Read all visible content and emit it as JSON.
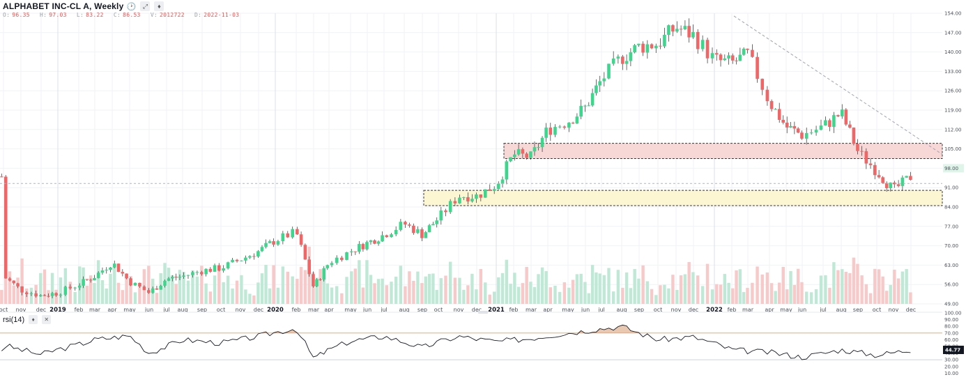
{
  "header": {
    "symbol": "ALPHABET INC-CL A, Weekly",
    "icons": [
      "clock-icon",
      "expand-icon",
      "pin-icon"
    ],
    "ohlc": [
      {
        "key": "O:",
        "value": "96.35"
      },
      {
        "key": "H:",
        "value": "97.03"
      },
      {
        "key": "L:",
        "value": "83.22"
      },
      {
        "key": "C:",
        "value": "86.53"
      },
      {
        "key": "V:",
        "value": "2012722"
      },
      {
        "key": "D:",
        "value": "2022-11-03"
      }
    ]
  },
  "price_axis": {
    "ticks": [
      "154.00",
      "147.00",
      "140.00",
      "133.00",
      "126.00",
      "119.00",
      "112.00",
      "105.00",
      "98.00",
      "91.00",
      "84.00",
      "77.00",
      "70.00",
      "63.00",
      "56.00",
      "49.00"
    ],
    "current_label": "98.00"
  },
  "rsi": {
    "label": "rsi(14)",
    "ticks": [
      "100.00",
      "90.00",
      "80.00",
      "70.00",
      "60.00",
      "50.00",
      "40.00",
      "30.00",
      "20.00",
      "10.00"
    ],
    "current_label": "44.77"
  },
  "time_axis": {
    "labels": [
      {
        "t": "oct",
        "x": 5
      },
      {
        "t": "nov",
        "x": 30
      },
      {
        "t": "dec",
        "x": 59
      },
      {
        "t": "2019",
        "x": 83,
        "year": true
      },
      {
        "t": "feb",
        "x": 113
      },
      {
        "t": "mar",
        "x": 136
      },
      {
        "t": "apr",
        "x": 161
      },
      {
        "t": "may",
        "x": 186
      },
      {
        "t": "jun",
        "x": 214
      },
      {
        "t": "jul",
        "x": 239
      },
      {
        "t": "aug",
        "x": 262
      },
      {
        "t": "sep",
        "x": 290
      },
      {
        "t": "oct",
        "x": 317
      },
      {
        "t": "nov",
        "x": 345
      },
      {
        "t": "dec",
        "x": 371
      },
      {
        "t": "2020",
        "x": 395,
        "year": true
      },
      {
        "t": "feb",
        "x": 425
      },
      {
        "t": "mar",
        "x": 450
      },
      {
        "t": "apr",
        "x": 472
      },
      {
        "t": "may",
        "x": 503
      },
      {
        "t": "jun",
        "x": 527
      },
      {
        "t": "jul",
        "x": 551
      },
      {
        "t": "aug",
        "x": 580
      },
      {
        "t": "sep",
        "x": 606
      },
      {
        "t": "oct",
        "x": 629
      },
      {
        "t": "nov",
        "x": 658
      },
      {
        "t": "dec",
        "x": 684
      },
      {
        "t": "2021",
        "x": 712,
        "year": true
      },
      {
        "t": "feb",
        "x": 737
      },
      {
        "t": "mar",
        "x": 762
      },
      {
        "t": "apr",
        "x": 786
      },
      {
        "t": "may",
        "x": 815
      },
      {
        "t": "jun",
        "x": 840
      },
      {
        "t": "jul",
        "x": 863
      },
      {
        "t": "aug",
        "x": 892
      },
      {
        "t": "sep",
        "x": 917
      },
      {
        "t": "oct",
        "x": 944
      },
      {
        "t": "nov",
        "x": 970
      },
      {
        "t": "dec",
        "x": 995
      },
      {
        "t": "2022",
        "x": 1025,
        "year": true
      },
      {
        "t": "feb",
        "x": 1050
      },
      {
        "t": "mar",
        "x": 1073
      },
      {
        "t": "apr",
        "x": 1104
      },
      {
        "t": "may",
        "x": 1128
      },
      {
        "t": "jun",
        "x": 1151
      },
      {
        "t": "jul",
        "x": 1181
      },
      {
        "t": "aug",
        "x": 1207
      },
      {
        "t": "sep",
        "x": 1231
      },
      {
        "t": "oct",
        "x": 1258
      },
      {
        "t": "nov",
        "x": 1282
      },
      {
        "t": "dec",
        "x": 1307
      }
    ]
  },
  "colors": {
    "up": "#26a69a",
    "down": "#ef5350",
    "up_candle": "#3dd68c",
    "down_candle": "#f06565",
    "up_vol": "#bfe9d6",
    "down_vol": "#f7c9c9",
    "resistance_zone": "#f8d7d7",
    "support_zone": "#fdf6d3",
    "rsi_line": "#131722",
    "rsi_overbought_fill": "#e8c8b0",
    "rsi_70_line": "#e0a070",
    "current_price_bg": "#e0f5e9"
  },
  "chart_data": {
    "type": "candlestick",
    "title": "ALPHABET INC-CL A, Weekly",
    "y_range": [
      49,
      154
    ],
    "rsi_range": [
      0,
      100
    ],
    "current_price": 98,
    "last_rsi": 44.77,
    "resistance_zone": [
      101.5,
      107
    ],
    "support_zone": [
      84.5,
      90
    ],
    "trendline": {
      "from": {
        "date": "2022-02",
        "price": 153
      },
      "to": {
        "date": "2022-12",
        "price": 103
      }
    },
    "price_path": [
      {
        "date": "2018-10",
        "close": 59
      },
      {
        "date": "2018-11",
        "close": 54
      },
      {
        "date": "2018-12",
        "close": 52
      },
      {
        "date": "2019-01",
        "close": 53
      },
      {
        "date": "2019-02",
        "close": 56
      },
      {
        "date": "2019-03",
        "close": 59
      },
      {
        "date": "2019-04",
        "close": 64
      },
      {
        "date": "2019-05",
        "close": 57
      },
      {
        "date": "2019-06",
        "close": 53
      },
      {
        "date": "2019-07",
        "close": 58
      },
      {
        "date": "2019-08",
        "close": 59
      },
      {
        "date": "2019-09",
        "close": 61
      },
      {
        "date": "2019-10",
        "close": 62
      },
      {
        "date": "2019-11",
        "close": 65
      },
      {
        "date": "2019-12",
        "close": 68
      },
      {
        "date": "2020-01",
        "close": 72
      },
      {
        "date": "2020-02",
        "close": 75
      },
      {
        "date": "2020-03",
        "close": 55
      },
      {
        "date": "2020-04",
        "close": 64
      },
      {
        "date": "2020-05",
        "close": 68
      },
      {
        "date": "2020-06",
        "close": 71
      },
      {
        "date": "2020-07",
        "close": 74
      },
      {
        "date": "2020-08",
        "close": 78
      },
      {
        "date": "2020-09",
        "close": 74
      },
      {
        "date": "2020-10",
        "close": 80
      },
      {
        "date": "2020-11",
        "close": 88
      },
      {
        "date": "2020-12",
        "close": 88
      },
      {
        "date": "2021-01",
        "close": 92
      },
      {
        "date": "2021-02",
        "close": 103
      },
      {
        "date": "2021-03",
        "close": 102
      },
      {
        "date": "2021-04",
        "close": 112
      },
      {
        "date": "2021-05",
        "close": 115
      },
      {
        "date": "2021-06",
        "close": 120
      },
      {
        "date": "2021-07",
        "close": 130
      },
      {
        "date": "2021-08",
        "close": 138
      },
      {
        "date": "2021-09",
        "close": 142
      },
      {
        "date": "2021-10",
        "close": 143
      },
      {
        "date": "2021-11",
        "close": 149
      },
      {
        "date": "2021-12",
        "close": 146
      },
      {
        "date": "2022-01",
        "close": 137
      },
      {
        "date": "2022-02",
        "close": 136
      },
      {
        "date": "2022-03",
        "close": 139
      },
      {
        "date": "2022-04",
        "close": 122
      },
      {
        "date": "2022-05",
        "close": 113
      },
      {
        "date": "2022-06",
        "close": 110
      },
      {
        "date": "2022-07",
        "close": 113
      },
      {
        "date": "2022-08",
        "close": 118
      },
      {
        "date": "2022-09",
        "close": 104
      },
      {
        "date": "2022-10",
        "close": 97
      },
      {
        "date": "2022-11",
        "close": 90
      },
      {
        "date": "2022-12",
        "close": 95
      }
    ],
    "rsi_path": [
      {
        "date": "2018-10",
        "rsi": 52
      },
      {
        "date": "2018-12",
        "rsi": 38
      },
      {
        "date": "2019-03",
        "rsi": 60
      },
      {
        "date": "2019-05",
        "rsi": 66
      },
      {
        "date": "2019-06",
        "rsi": 40
      },
      {
        "date": "2019-08",
        "rsi": 60
      },
      {
        "date": "2019-10",
        "rsi": 55
      },
      {
        "date": "2019-12",
        "rsi": 65
      },
      {
        "date": "2020-02",
        "rsi": 77
      },
      {
        "date": "2020-03",
        "rsi": 32
      },
      {
        "date": "2020-05",
        "rsi": 58
      },
      {
        "date": "2020-07",
        "rsi": 65
      },
      {
        "date": "2020-09",
        "rsi": 48
      },
      {
        "date": "2020-11",
        "rsi": 65
      },
      {
        "date": "2021-01",
        "rsi": 57
      },
      {
        "date": "2021-03",
        "rsi": 62
      },
      {
        "date": "2021-05",
        "rsi": 70
      },
      {
        "date": "2021-08",
        "rsi": 80
      },
      {
        "date": "2021-10",
        "rsi": 60
      },
      {
        "date": "2021-12",
        "rsi": 64
      },
      {
        "date": "2022-02",
        "rsi": 45
      },
      {
        "date": "2022-04",
        "rsi": 41
      },
      {
        "date": "2022-06",
        "rsi": 34
      },
      {
        "date": "2022-08",
        "rsi": 45
      },
      {
        "date": "2022-10",
        "rsi": 37
      },
      {
        "date": "2022-12",
        "rsi": 44.77
      }
    ]
  }
}
